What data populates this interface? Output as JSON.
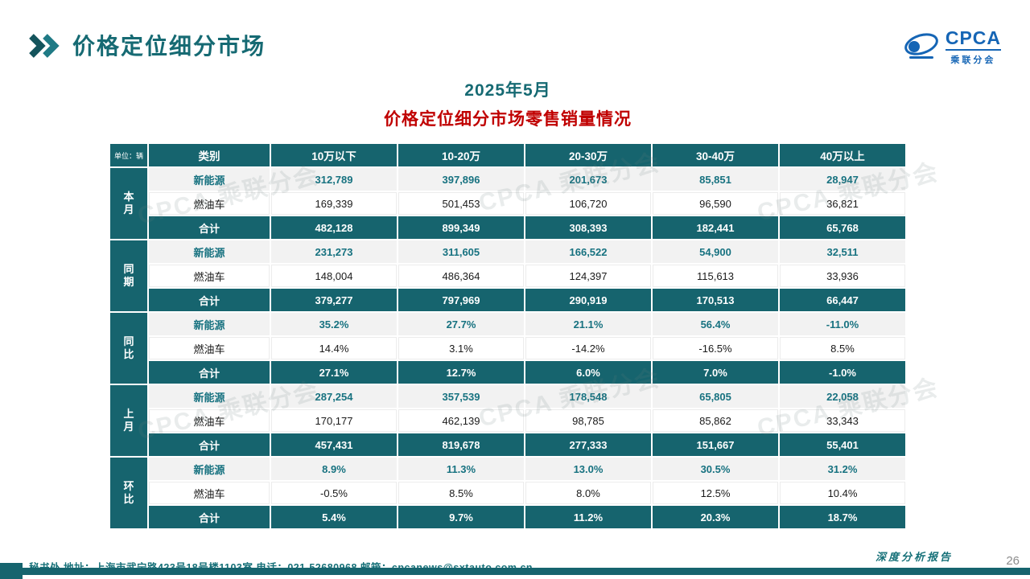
{
  "header": {
    "title": "价格定位细分市场",
    "logo": {
      "name": "CPCA",
      "subtitle": "乘联分会"
    }
  },
  "subtitle": {
    "line1": "2025年5月",
    "line2": "价格定位细分市场零售销量情况"
  },
  "table": {
    "unit_label": "单位：辆",
    "category_header": "类别",
    "columns": [
      "10万以下",
      "10-20万",
      "20-30万",
      "30-40万",
      "40万以上"
    ],
    "groups": [
      {
        "label": "本月",
        "rows": [
          {
            "type": "nev",
            "label": "新能源",
            "values": [
              "312,789",
              "397,896",
              "201,673",
              "85,851",
              "28,947"
            ]
          },
          {
            "type": "fuel",
            "label": "燃油车",
            "values": [
              "169,339",
              "501,453",
              "106,720",
              "96,590",
              "36,821"
            ]
          },
          {
            "type": "total",
            "label": "合计",
            "values": [
              "482,128",
              "899,349",
              "308,393",
              "182,441",
              "65,768"
            ]
          }
        ]
      },
      {
        "label": "同期",
        "rows": [
          {
            "type": "nev",
            "label": "新能源",
            "values": [
              "231,273",
              "311,605",
              "166,522",
              "54,900",
              "32,511"
            ]
          },
          {
            "type": "fuel",
            "label": "燃油车",
            "values": [
              "148,004",
              "486,364",
              "124,397",
              "115,613",
              "33,936"
            ]
          },
          {
            "type": "total",
            "label": "合计",
            "values": [
              "379,277",
              "797,969",
              "290,919",
              "170,513",
              "66,447"
            ]
          }
        ]
      },
      {
        "label": "同比",
        "rows": [
          {
            "type": "nev",
            "label": "新能源",
            "values": [
              "35.2%",
              "27.7%",
              "21.1%",
              "56.4%",
              "-11.0%"
            ]
          },
          {
            "type": "fuel",
            "label": "燃油车",
            "values": [
              "14.4%",
              "3.1%",
              "-14.2%",
              "-16.5%",
              "8.5%"
            ]
          },
          {
            "type": "total",
            "label": "合计",
            "values": [
              "27.1%",
              "12.7%",
              "6.0%",
              "7.0%",
              "-1.0%"
            ]
          }
        ]
      },
      {
        "label": "上月",
        "rows": [
          {
            "type": "nev",
            "label": "新能源",
            "values": [
              "287,254",
              "357,539",
              "178,548",
              "65,805",
              "22,058"
            ]
          },
          {
            "type": "fuel",
            "label": "燃油车",
            "values": [
              "170,177",
              "462,139",
              "98,785",
              "85,862",
              "33,343"
            ]
          },
          {
            "type": "total",
            "label": "合计",
            "values": [
              "457,431",
              "819,678",
              "277,333",
              "151,667",
              "55,401"
            ]
          }
        ]
      },
      {
        "label": "环比",
        "rows": [
          {
            "type": "nev",
            "label": "新能源",
            "values": [
              "8.9%",
              "11.3%",
              "13.0%",
              "30.5%",
              "31.2%"
            ]
          },
          {
            "type": "fuel",
            "label": "燃油车",
            "values": [
              "-0.5%",
              "8.5%",
              "8.0%",
              "12.5%",
              "10.4%"
            ]
          },
          {
            "type": "total",
            "label": "合计",
            "values": [
              "5.4%",
              "9.7%",
              "11.2%",
              "20.3%",
              "18.7%"
            ]
          }
        ]
      }
    ]
  },
  "watermark": {
    "text": "CPCA 乘联分会"
  },
  "footer": {
    "contact": "秘书处   地址：上海市武宁路423号18号楼1103室  电话：021-52680968   邮箱：cpcanews@sxtauto.com.cn",
    "report_tag": "深度分析报告",
    "page_number": "26"
  },
  "colors": {
    "teal": "#16646E",
    "teal_text": "#177280",
    "red": "#C00000",
    "blue": "#1565B5",
    "row_alt": "#F2F2F2"
  }
}
